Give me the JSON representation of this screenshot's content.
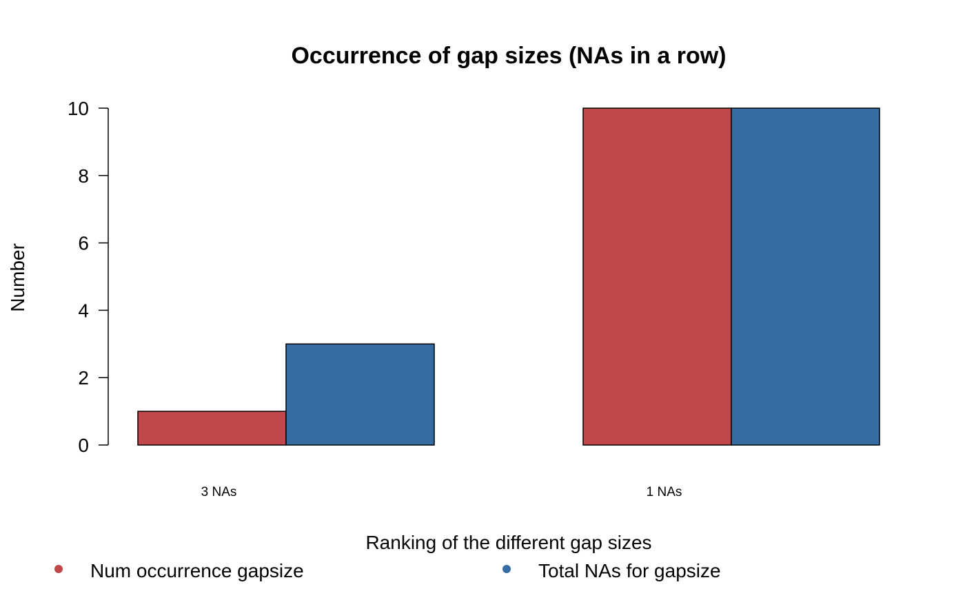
{
  "chart_data": {
    "type": "bar",
    "title": "Occurrence of gap sizes (NAs in a row)",
    "xlabel": "Ranking of the different gap sizes",
    "ylabel": "Number",
    "categories": [
      "3 NAs",
      "1 NAs"
    ],
    "series": [
      {
        "name": "Num occurrence gapsize",
        "values": [
          1,
          10
        ],
        "color": "#C0484B"
      },
      {
        "name": "Total NAs for gapsize",
        "values": [
          3,
          10
        ],
        "color": "#386CA5"
      }
    ],
    "ylim": [
      0,
      10
    ],
    "yticks": [
      0,
      2,
      4,
      6,
      8,
      10
    ],
    "grid": false,
    "legend_position": "bottom"
  }
}
